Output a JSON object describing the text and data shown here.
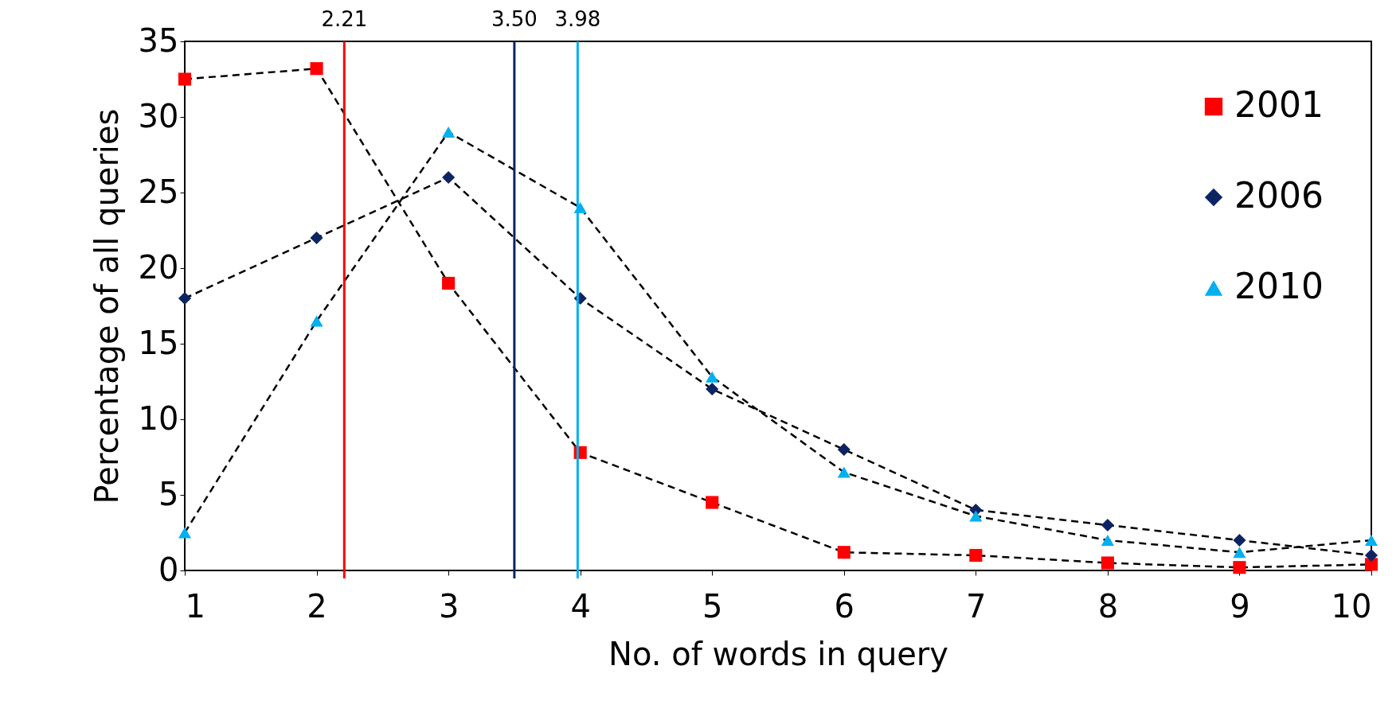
{
  "chart_data": {
    "type": "line",
    "xlabel": "No. of words in query",
    "ylabel": "Percentage of all queries",
    "x": [
      1,
      2,
      3,
      4,
      5,
      6,
      7,
      8,
      9,
      10
    ],
    "series": [
      {
        "name": "2001",
        "color": "#ff0000",
        "marker": "square",
        "values": [
          32.5,
          33.2,
          19,
          7.8,
          4.5,
          1.2,
          1,
          0.5,
          0.2,
          0.4
        ]
      },
      {
        "name": "2006",
        "color": "#0d2463",
        "marker": "diamond",
        "values": [
          18,
          22,
          26,
          18,
          12,
          8,
          4,
          3,
          2,
          1
        ]
      },
      {
        "name": "2010",
        "color": "#00b0f0",
        "marker": "triangle",
        "values": [
          2.5,
          16.5,
          29,
          24,
          12.8,
          6.5,
          3.6,
          2,
          1.2,
          2
        ]
      }
    ],
    "xlim": [
      1,
      10
    ],
    "xticks": [
      1,
      2,
      3,
      4,
      5,
      6,
      7,
      8,
      9,
      10
    ],
    "ylim": [
      0,
      35
    ],
    "yticks": [
      0,
      5,
      10,
      15,
      20,
      25,
      30,
      35
    ],
    "ref_lines": [
      {
        "axis": "x",
        "value": 2.21,
        "label": "2.21",
        "color": "#ff0000"
      },
      {
        "axis": "x",
        "value": 3.5,
        "label": "3.50",
        "color": "#0d2463"
      },
      {
        "axis": "x",
        "value": 3.98,
        "label": "3.98",
        "color": "#00b0f0"
      }
    ],
    "grid": false,
    "legend": "top right",
    "line_style": "dashed"
  }
}
